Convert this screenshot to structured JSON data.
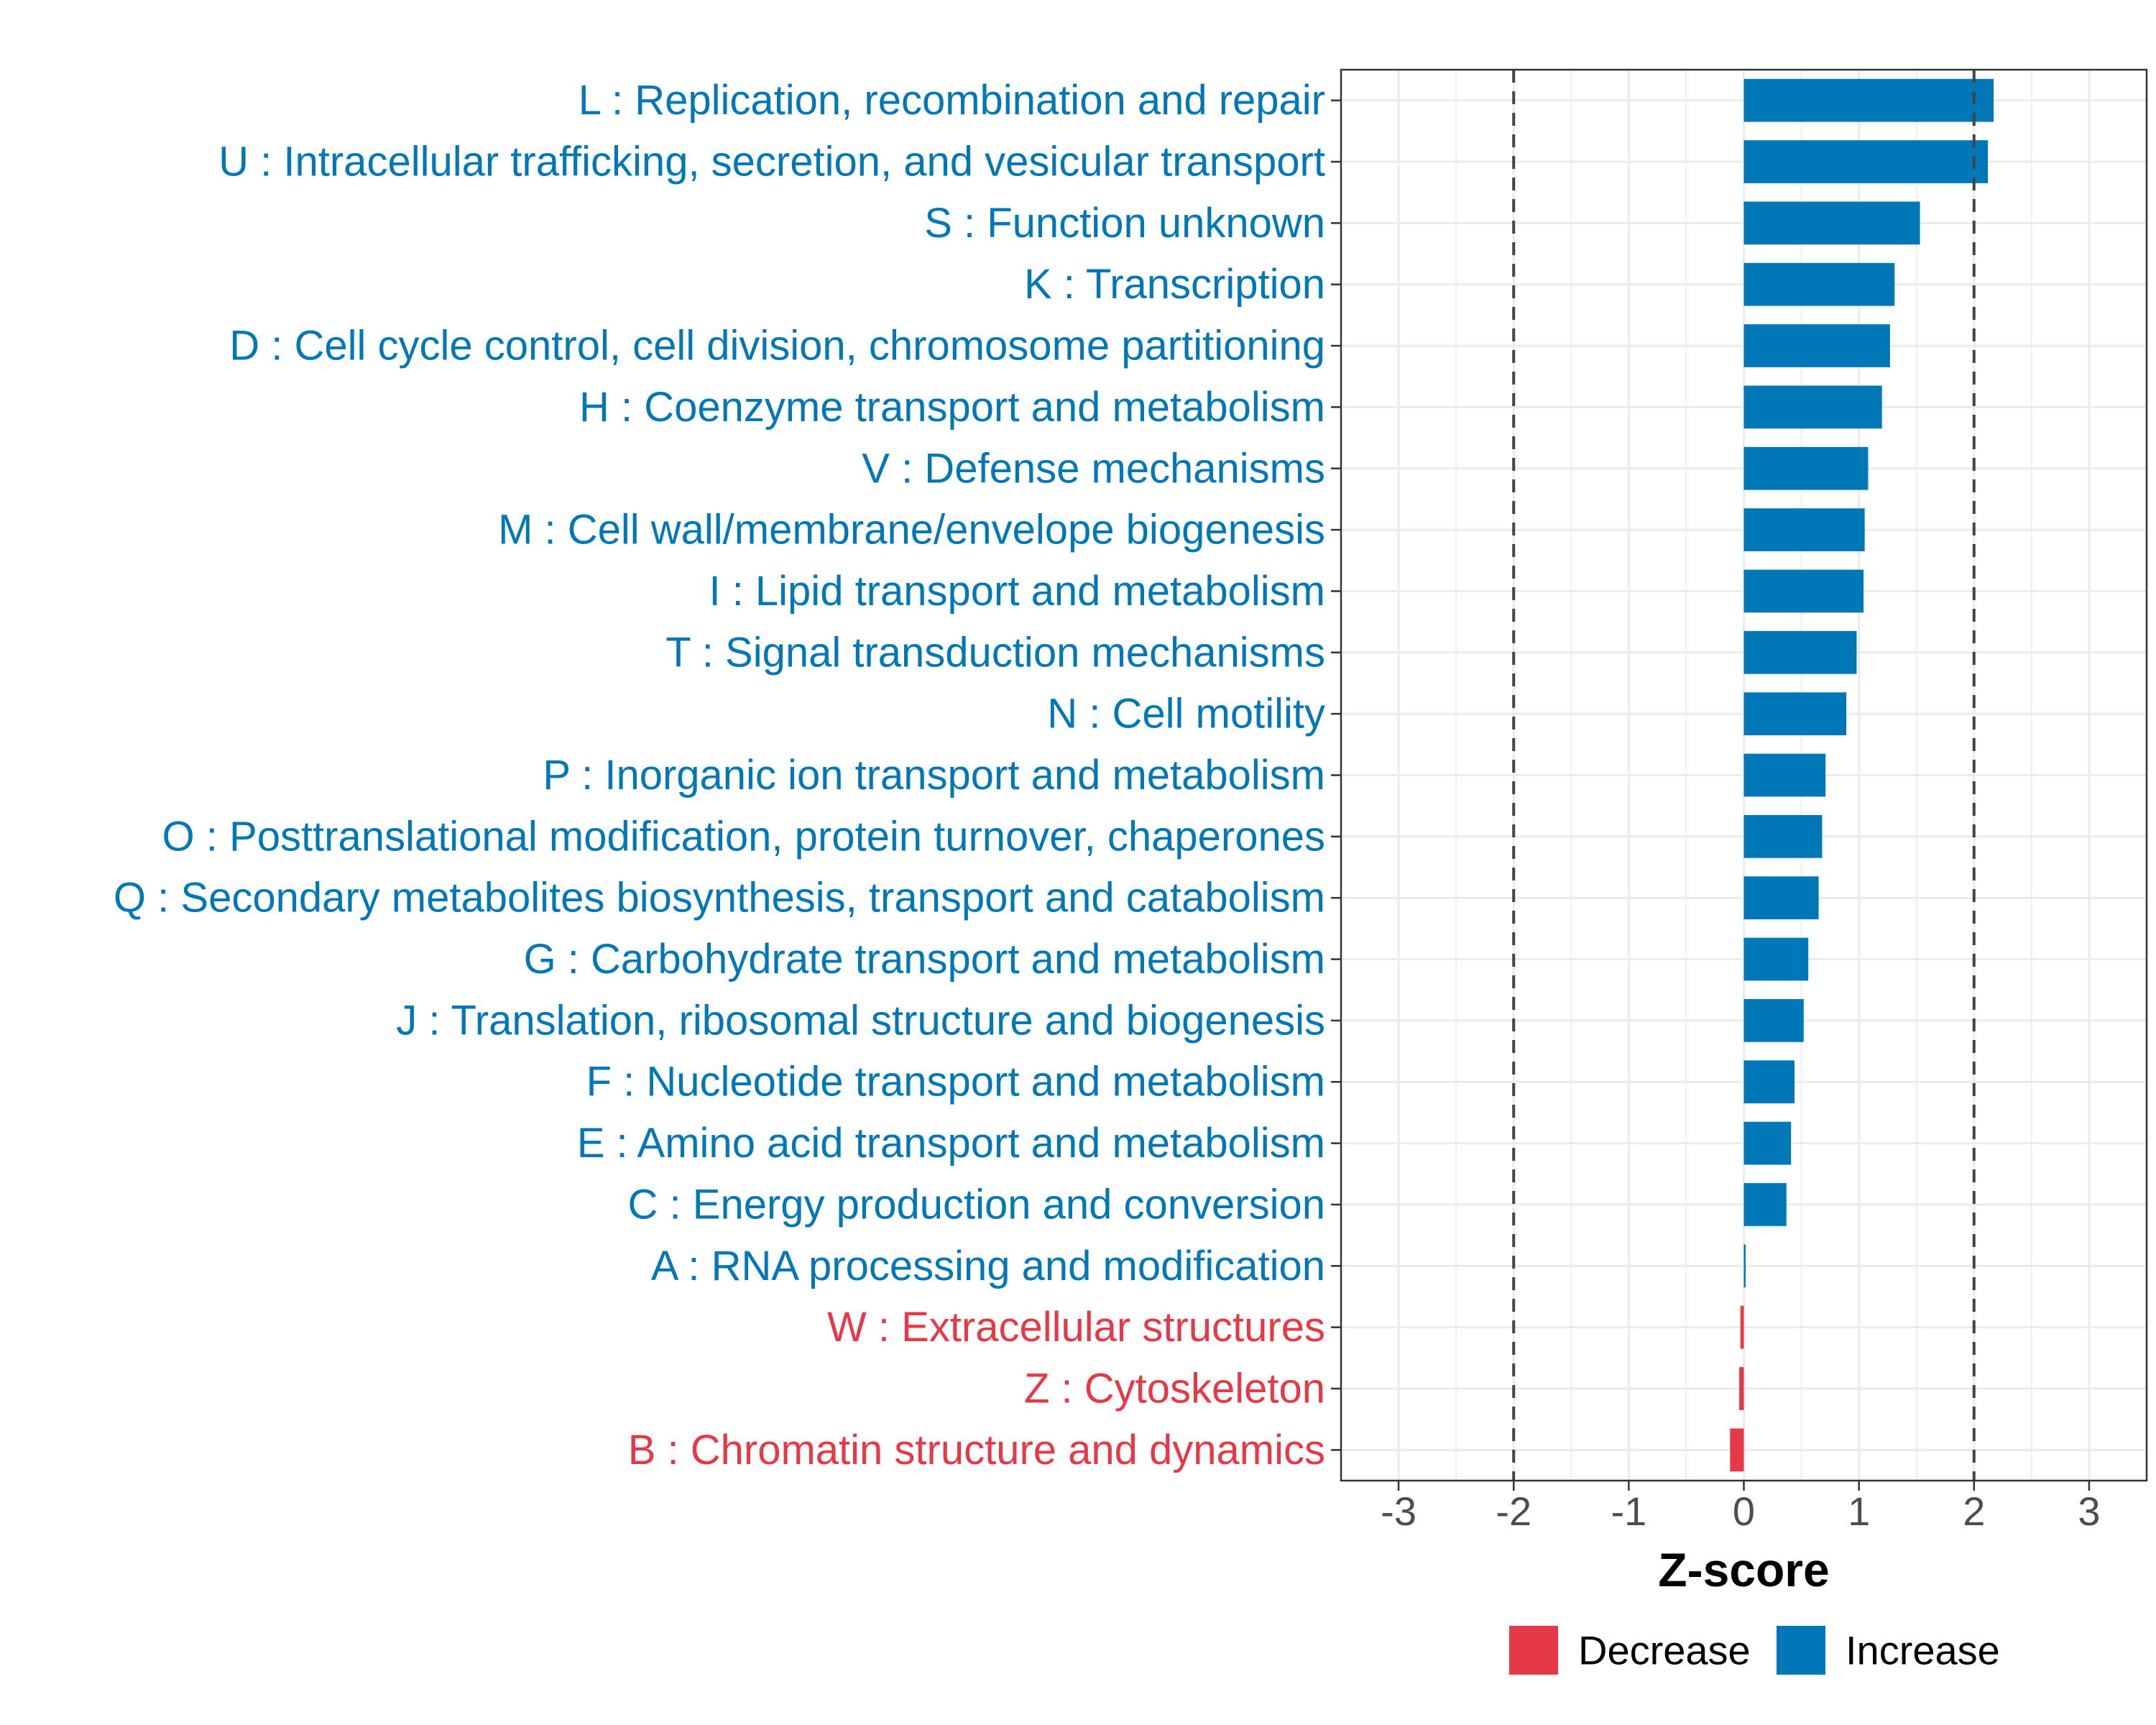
{
  "chart_data": {
    "type": "bar",
    "orientation": "horizontal",
    "xlabel": "Z-score",
    "xlim": [
      -3.5,
      3.5
    ],
    "xticks": [
      -3,
      -2,
      -1,
      0,
      1,
      2,
      3
    ],
    "tick_labels": [
      "-3",
      "-2",
      "-1",
      "0",
      "1",
      "2",
      "3"
    ],
    "reference_lines": [
      -2,
      2
    ],
    "grid": true,
    "colors": {
      "Decrease": "#e63946",
      "Increase": "#0077b6"
    },
    "legend": {
      "position": "bottom",
      "items": [
        {
          "label": "Decrease",
          "color": "#e63946"
        },
        {
          "label": "Increase",
          "color": "#0077b6"
        }
      ]
    },
    "categories": [
      {
        "label": "L : Replication, recombination and repair",
        "value": 2.17,
        "direction": "Increase"
      },
      {
        "label": "U : Intracellular trafficking, secretion, and vesicular transport",
        "value": 2.12,
        "direction": "Increase"
      },
      {
        "label": "S : Function unknown",
        "value": 1.53,
        "direction": "Increase"
      },
      {
        "label": "K : Transcription",
        "value": 1.31,
        "direction": "Increase"
      },
      {
        "label": "D : Cell cycle control, cell division, chromosome partitioning",
        "value": 1.27,
        "direction": "Increase"
      },
      {
        "label": "H : Coenzyme transport and metabolism",
        "value": 1.2,
        "direction": "Increase"
      },
      {
        "label": "V : Defense mechanisms",
        "value": 1.08,
        "direction": "Increase"
      },
      {
        "label": "M : Cell wall/membrane/envelope biogenesis",
        "value": 1.05,
        "direction": "Increase"
      },
      {
        "label": "I : Lipid transport and metabolism",
        "value": 1.04,
        "direction": "Increase"
      },
      {
        "label": "T : Signal transduction mechanisms",
        "value": 0.98,
        "direction": "Increase"
      },
      {
        "label": "N : Cell motility",
        "value": 0.89,
        "direction": "Increase"
      },
      {
        "label": "P : Inorganic ion transport and metabolism",
        "value": 0.71,
        "direction": "Increase"
      },
      {
        "label": "O : Posttranslational modification, protein turnover, chaperones",
        "value": 0.68,
        "direction": "Increase"
      },
      {
        "label": "Q : Secondary metabolites biosynthesis, transport and catabolism",
        "value": 0.65,
        "direction": "Increase"
      },
      {
        "label": "G : Carbohydrate transport and metabolism",
        "value": 0.56,
        "direction": "Increase"
      },
      {
        "label": "J : Translation, ribosomal structure and biogenesis",
        "value": 0.52,
        "direction": "Increase"
      },
      {
        "label": "F : Nucleotide transport and metabolism",
        "value": 0.44,
        "direction": "Increase"
      },
      {
        "label": "E : Amino acid transport and metabolism",
        "value": 0.41,
        "direction": "Increase"
      },
      {
        "label": "C : Energy production and conversion",
        "value": 0.37,
        "direction": "Increase"
      },
      {
        "label": "A : RNA processing and modification",
        "value": 0.01,
        "direction": "Increase"
      },
      {
        "label": "W : Extracellular structures",
        "value": -0.03,
        "direction": "Decrease"
      },
      {
        "label": "Z : Cytoskeleton",
        "value": -0.04,
        "direction": "Decrease"
      },
      {
        "label": "B : Chromatin structure and dynamics",
        "value": -0.12,
        "direction": "Decrease"
      }
    ]
  }
}
